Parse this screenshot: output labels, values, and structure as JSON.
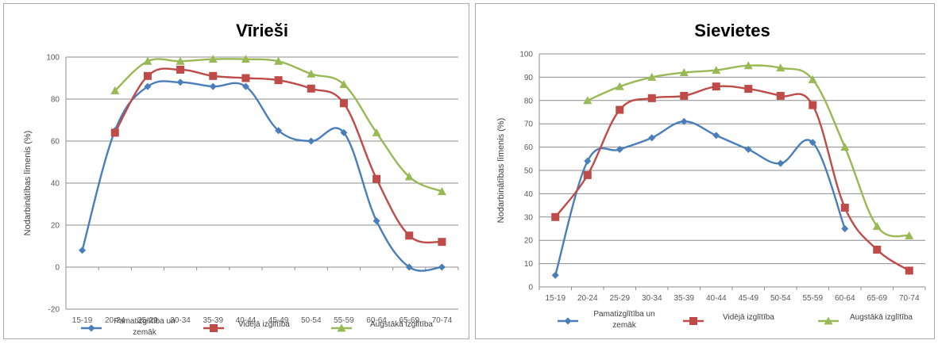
{
  "chart_data": [
    {
      "type": "line",
      "title": "Vīrieši",
      "ylabel": "Nodarbinātības  līmenis (%)",
      "xlabel": "",
      "ylim": [
        -20,
        100
      ],
      "yticks": [
        -20,
        0,
        20,
        40,
        60,
        80,
        100
      ],
      "grid": true,
      "legend_position": "bottom",
      "categories": [
        "15-19",
        "20-24",
        "25-29",
        "30-34",
        "35-39",
        "40-44",
        "45-49",
        "50-54",
        "55-59",
        "60-64",
        "65-69",
        "70-74"
      ],
      "series": [
        {
          "name": "Pamatizglītība un zemāk",
          "color": "#4a7ebb",
          "marker": "diamond",
          "values": [
            8,
            65,
            86,
            88,
            86,
            86,
            65,
            60,
            64,
            22,
            0,
            0
          ]
        },
        {
          "name": "Vidējā izglītība",
          "color": "#be4b48",
          "marker": "square",
          "values": [
            null,
            64,
            91,
            94,
            91,
            90,
            89,
            85,
            78,
            42,
            15,
            12
          ]
        },
        {
          "name": "Augstākā izglītība",
          "color": "#98b954",
          "marker": "triangle",
          "values": [
            null,
            84,
            98,
            98,
            99,
            99,
            98,
            92,
            87,
            64,
            43,
            36
          ]
        }
      ]
    },
    {
      "type": "line",
      "title": "Sievietes",
      "ylabel": "Nodarbinātības  līmenis (%)",
      "xlabel": "",
      "ylim": [
        0,
        100
      ],
      "yticks": [
        0,
        10,
        20,
        30,
        40,
        50,
        60,
        70,
        80,
        90,
        100
      ],
      "grid": true,
      "legend_position": "bottom",
      "categories": [
        "15-19",
        "20-24",
        "25-29",
        "30-34",
        "35-39",
        "40-44",
        "45-49",
        "50-54",
        "55-59",
        "60-64",
        "65-69",
        "70-74"
      ],
      "series": [
        {
          "name": "Pamatizglītība un zemāk",
          "color": "#4a7ebb",
          "marker": "diamond",
          "values": [
            5,
            54,
            59,
            64,
            71,
            65,
            59,
            53,
            62,
            25,
            null,
            null
          ]
        },
        {
          "name": "Vidējā izglītība",
          "color": "#be4b48",
          "marker": "square",
          "values": [
            30,
            48,
            76,
            81,
            82,
            86,
            85,
            82,
            78,
            34,
            16,
            7
          ]
        },
        {
          "name": "Augstākā izglītība",
          "color": "#98b954",
          "marker": "triangle",
          "values": [
            null,
            80,
            86,
            90,
            92,
            93,
            95,
            94,
            89,
            60,
            26,
            22
          ]
        }
      ]
    }
  ]
}
